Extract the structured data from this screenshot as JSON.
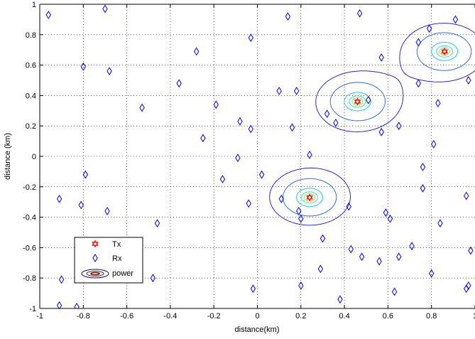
{
  "chart_data": {
    "type": "scatter",
    "xlabel": "distance(km)",
    "ylabel": "distance (km)",
    "xlim": [
      -1,
      1
    ],
    "ylim": [
      -1,
      1
    ],
    "x_ticks": [
      "-1",
      "-0.8",
      "-0.6",
      "-0.4",
      "-0.2",
      "0",
      "0.2",
      "0.4",
      "0.6",
      "0.8",
      "1"
    ],
    "y_ticks": [
      "-1",
      "-0.8",
      "-0.6",
      "-0.4",
      "-0.2",
      "0",
      "0.2",
      "0.4",
      "0.6",
      "0.8",
      "1"
    ],
    "x_tick_values": [
      -1,
      -0.8,
      -0.6,
      -0.4,
      -0.2,
      0,
      0.2,
      0.4,
      0.6,
      0.8,
      1
    ],
    "y_tick_values": [
      -1,
      -0.8,
      -0.6,
      -0.4,
      -0.2,
      0,
      0.2,
      0.4,
      0.6,
      0.8,
      1
    ],
    "grid": true,
    "legend_position": "bottom-left",
    "legend": [
      {
        "label": "Tx",
        "marker": "hexagram",
        "color": "#ff0000"
      },
      {
        "label": "Rx",
        "marker": "diamond",
        "color": "#0000ff"
      },
      {
        "label": "power",
        "marker": "contour",
        "color": "#0000a0"
      }
    ],
    "series": [
      {
        "name": "Tx",
        "marker": "hexagram",
        "color": "#ff0000",
        "points": [
          [
            0.24,
            -0.27
          ],
          [
            0.46,
            0.36
          ],
          [
            0.86,
            0.69
          ]
        ]
      },
      {
        "name": "Rx",
        "marker": "diamond",
        "color": "#0000ff",
        "points": [
          [
            -0.96,
            0.93
          ],
          [
            -0.7,
            0.97
          ],
          [
            -0.8,
            0.59
          ],
          [
            -0.68,
            0.56
          ],
          [
            -0.53,
            0.32
          ],
          [
            -0.28,
            0.69
          ],
          [
            -0.36,
            0.48
          ],
          [
            -0.19,
            0.34
          ],
          [
            -0.25,
            0.12
          ],
          [
            -0.08,
            0.23
          ],
          [
            -0.03,
            0.18
          ],
          [
            -0.03,
            0.78
          ],
          [
            -0.09,
            -0.01
          ],
          [
            -0.16,
            -0.15
          ],
          [
            -0.04,
            -0.31
          ],
          [
            -0.79,
            -0.12
          ],
          [
            -0.81,
            -0.32
          ],
          [
            -0.69,
            -0.36
          ],
          [
            -0.91,
            -0.28
          ],
          [
            -0.46,
            -0.44
          ],
          [
            -0.9,
            -0.81
          ],
          [
            -0.79,
            -0.8
          ],
          [
            -0.91,
            -0.98
          ],
          [
            -0.83,
            -0.99
          ],
          [
            -0.48,
            -0.8
          ],
          [
            -0.02,
            -0.87
          ],
          [
            0.14,
            0.92
          ],
          [
            0.1,
            0.43
          ],
          [
            0.18,
            0.43
          ],
          [
            0.16,
            0.19
          ],
          [
            0.32,
            0.28
          ],
          [
            0.36,
            0.22
          ],
          [
            0.24,
            0.01
          ],
          [
            0.02,
            -0.12
          ],
          [
            0.11,
            -0.28
          ],
          [
            0.19,
            -0.36
          ],
          [
            0.2,
            -0.41
          ],
          [
            0.3,
            -0.54
          ],
          [
            0.29,
            -0.74
          ],
          [
            0.2,
            -0.85
          ],
          [
            0.38,
            -0.94
          ],
          [
            0.42,
            -0.33
          ],
          [
            0.43,
            -0.61
          ],
          [
            0.48,
            -0.66
          ],
          [
            0.51,
            0.37
          ],
          [
            0.47,
            0.94
          ],
          [
            0.57,
            0.65
          ],
          [
            0.57,
            0.16
          ],
          [
            0.65,
            0.2
          ],
          [
            0.59,
            -0.37
          ],
          [
            0.61,
            -0.41
          ],
          [
            0.56,
            -0.69
          ],
          [
            0.65,
            -0.66
          ],
          [
            0.71,
            -0.59
          ],
          [
            0.63,
            -0.89
          ],
          [
            0.79,
            0.84
          ],
          [
            0.74,
            0.75
          ],
          [
            0.91,
            0.9
          ],
          [
            0.74,
            0.48
          ],
          [
            0.83,
            0.35
          ],
          [
            0.97,
            0.5
          ],
          [
            0.81,
            0.08
          ],
          [
            0.76,
            -0.07
          ],
          [
            0.76,
            -0.21
          ],
          [
            0.96,
            -0.26
          ],
          [
            0.84,
            -0.44
          ],
          [
            0.98,
            -0.62
          ],
          [
            0.96,
            -0.87
          ],
          [
            0.97,
            -0.85
          ],
          [
            0.8,
            -0.77
          ]
        ]
      }
    ],
    "contour_sources": [
      {
        "x": 0.24,
        "y": -0.27
      },
      {
        "x": 0.46,
        "y": 0.36
      },
      {
        "x": 0.86,
        "y": 0.69
      }
    ],
    "contour_levels": [
      {
        "level": 1,
        "color": "#2a2ad0"
      },
      {
        "level": 2,
        "color": "#2f6fd6"
      },
      {
        "level": 3,
        "color": "#1ec8e8"
      },
      {
        "level": 4,
        "color": "#40e0b0"
      },
      {
        "level": 5,
        "color": "#a0e060"
      },
      {
        "level": 6,
        "color": "#e8d040"
      },
      {
        "level": 7,
        "color": "#e06020"
      },
      {
        "level": 8,
        "color": "#8b0000"
      }
    ]
  }
}
